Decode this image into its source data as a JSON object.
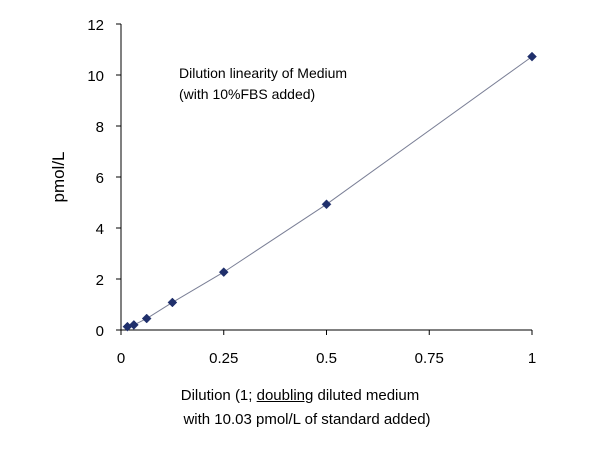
{
  "chart_data": {
    "type": "scatter",
    "title_line1": "Dilution linearity  of  Medium",
    "title_line2": "(with 10%FBS added)",
    "ylabel": "pmol/L",
    "xlabel_prefix": "Dilution (1; ",
    "xlabel_underlined": "doubling",
    "xlabel_suffix": " diluted medium",
    "xlabel_line2": "with 10.03 pmol/L of standard added)",
    "xlim": [
      0,
      1
    ],
    "ylim": [
      0,
      12
    ],
    "xticks": [
      0,
      0.25,
      0.5,
      0.75,
      1
    ],
    "xtick_labels": [
      "0",
      "0.25",
      "0.5",
      "0.75",
      "1"
    ],
    "yticks": [
      0,
      2,
      4,
      6,
      8,
      10,
      12
    ],
    "ytick_labels": [
      "0",
      "2",
      "4",
      "6",
      "8",
      "10",
      "12"
    ],
    "grid": false,
    "marker": "diamond",
    "marker_color": "#1f2f6b",
    "trendline": true,
    "trendline_color": "#7a7f96",
    "series": [
      {
        "x": [
          0.015625,
          0.03125,
          0.0625,
          0.125,
          0.25,
          0.5,
          1
        ],
        "y": [
          0.13,
          0.2,
          0.45,
          1.08,
          2.27,
          4.93,
          10.72
        ]
      }
    ]
  }
}
